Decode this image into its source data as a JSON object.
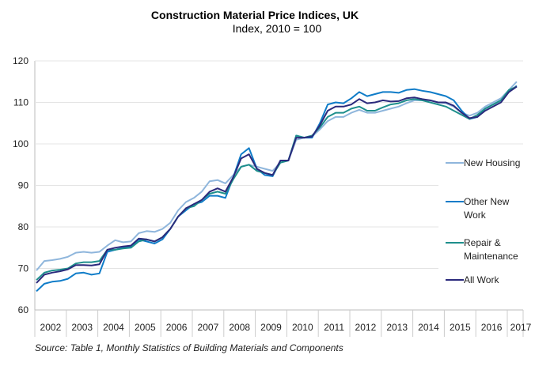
{
  "chart_data": {
    "type": "line",
    "title": "Construction Material Price Indices, UK",
    "subtitle": "Index, 2010 = 100",
    "source": "Source: Table 1, Monthly Statistics of Building Materials and Components",
    "ylim": [
      60,
      120
    ],
    "yticks": [
      "60",
      "70",
      "80",
      "90",
      "100",
      "110",
      "120"
    ],
    "xticks": [
      "2002",
      "2003",
      "2004",
      "2005",
      "2006",
      "2007",
      "2008",
      "2009",
      "2010",
      "2011",
      "2012",
      "2013",
      "2014",
      "2015",
      "2016",
      "2017"
    ],
    "x_start": "2002 Q1",
    "x_interval": "quarter",
    "grid": true,
    "legend_position": "right",
    "series": [
      {
        "name": "New Housing",
        "color": "#8fb6dc",
        "values": [
          69.5,
          71.8,
          72.0,
          72.3,
          72.8,
          73.8,
          74.0,
          73.8,
          74.0,
          75.5,
          76.8,
          76.3,
          76.5,
          78.5,
          79.0,
          78.8,
          79.5,
          81.0,
          84.0,
          86.0,
          87.0,
          88.5,
          91.0,
          91.3,
          90.5,
          92.5,
          94.5,
          95.0,
          94.5,
          94.0,
          93.5,
          95.5,
          96.0,
          101.0,
          101.5,
          101.8,
          103.5,
          105.5,
          106.5,
          106.5,
          107.5,
          108.2,
          107.5,
          107.5,
          108.0,
          108.5,
          109.0,
          109.8,
          110.5,
          110.5,
          110.5,
          110.0,
          109.8,
          109.0,
          107.5,
          106.8,
          107.5,
          109.0,
          110.0,
          111.0,
          113.0,
          115.0
        ]
      },
      {
        "name": "Other New Work",
        "color": "#0f7cc8",
        "values": [
          64.5,
          66.3,
          66.8,
          67.0,
          67.5,
          68.8,
          69.0,
          68.5,
          68.8,
          74.0,
          74.5,
          75.0,
          75.3,
          77.0,
          76.5,
          76.0,
          77.0,
          79.5,
          82.5,
          84.0,
          85.5,
          86.0,
          87.5,
          87.5,
          87.0,
          92.0,
          97.5,
          99.0,
          94.0,
          92.5,
          92.2,
          96.0,
          96.0,
          102.0,
          101.5,
          101.5,
          105.0,
          109.5,
          110.0,
          109.8,
          111.0,
          112.5,
          111.5,
          112.0,
          112.5,
          112.5,
          112.3,
          113.0,
          113.2,
          112.8,
          112.5,
          112.0,
          111.5,
          110.5,
          108.0,
          106.0,
          106.5,
          108.5,
          109.5,
          110.5,
          112.5,
          114.0
        ]
      },
      {
        "name": "Repair & Maintenance",
        "color": "#1e8f8c",
        "values": [
          67.2,
          69.0,
          69.5,
          69.7,
          70.0,
          71.2,
          71.5,
          71.5,
          71.8,
          74.5,
          74.5,
          74.8,
          75.0,
          76.5,
          77.0,
          76.5,
          77.5,
          79.5,
          82.5,
          84.5,
          85.0,
          86.5,
          88.0,
          88.5,
          88.0,
          91.5,
          94.5,
          95.0,
          93.5,
          93.0,
          92.5,
          95.5,
          96.0,
          102.0,
          101.5,
          102.0,
          104.0,
          106.5,
          107.5,
          107.5,
          108.5,
          109.0,
          108.0,
          108.0,
          108.8,
          109.5,
          109.8,
          110.5,
          110.8,
          110.5,
          110.0,
          109.5,
          109.0,
          108.0,
          107.0,
          106.0,
          107.0,
          108.5,
          109.5,
          110.5,
          113.0,
          113.8
        ]
      },
      {
        "name": "All Work",
        "color": "#2b2a7c",
        "values": [
          66.5,
          68.5,
          69.0,
          69.3,
          69.8,
          70.8,
          70.8,
          70.7,
          71.0,
          74.5,
          75.0,
          75.3,
          75.5,
          77.2,
          77.0,
          76.5,
          77.5,
          79.5,
          82.5,
          84.5,
          85.5,
          86.5,
          88.5,
          89.3,
          88.5,
          92.0,
          96.5,
          97.5,
          94.0,
          93.0,
          92.5,
          96.0,
          96.0,
          101.5,
          101.5,
          101.8,
          104.5,
          108.0,
          109.0,
          109.0,
          109.5,
          110.8,
          109.8,
          110.0,
          110.5,
          110.2,
          110.3,
          111.0,
          111.2,
          110.8,
          110.5,
          110.0,
          110.0,
          109.2,
          107.5,
          106.2,
          106.5,
          108.0,
          109.0,
          110.0,
          112.5,
          113.8
        ]
      }
    ]
  }
}
